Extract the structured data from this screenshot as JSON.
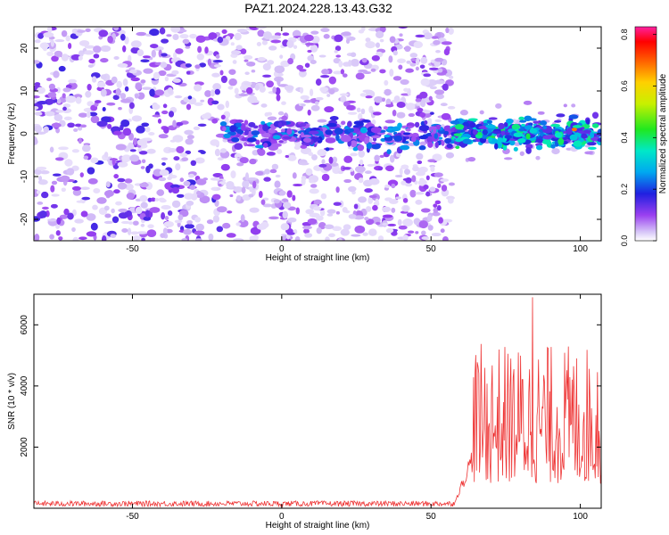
{
  "title": "PAZ1.2024.228.13.43.G32",
  "chart_data": [
    {
      "type": "heatmap",
      "xlabel": "Height of straight line (km)",
      "ylabel": "Frequency (Hz)",
      "xlim": [
        -83,
        107
      ],
      "ylim": [
        -25,
        25
      ],
      "x_ticks": [
        -50,
        0,
        50,
        100
      ],
      "y_ticks": [
        -20,
        -10,
        0,
        10,
        20
      ],
      "colorbar": {
        "label": "Normalized spectral amplitude",
        "range": [
          0,
          0.83
        ],
        "ticks": [
          "0.0",
          "0.2",
          "0.4",
          "0.6",
          "0.8"
        ],
        "colormap": "rainbow (purple-blue-cyan-green-yellow-red-magenta)"
      },
      "signal_band": {
        "description": "noise scattered across all frequencies below ~57 km; concentrated band near 0 Hz from ~-20 km upward; strongest 58-107 km",
        "center_frequency_hz": 0,
        "band_half_width_hz": 4,
        "signal_start_km": -20,
        "strong_signal_start_km": 58,
        "noise_end_km": 57
      }
    },
    {
      "type": "line",
      "xlabel": "Height of straight line (km)",
      "ylabel": "SNR (10 * v/v)",
      "xlim": [
        -83,
        107
      ],
      "ylim": [
        0,
        7000
      ],
      "x_ticks": [
        -50,
        0,
        50,
        100
      ],
      "y_ticks": [
        2000,
        4000,
        6000
      ],
      "line_color": "#ee3333",
      "segments": [
        {
          "x_range": [
            -83,
            58
          ],
          "approx_value": 150
        },
        {
          "x_range": [
            58,
            64
          ],
          "approx_value": 1000
        },
        {
          "x_range": [
            64,
            107
          ],
          "approx_range": [
            800,
            6900
          ],
          "peak": {
            "x": 84,
            "y": 6900
          }
        }
      ]
    }
  ]
}
